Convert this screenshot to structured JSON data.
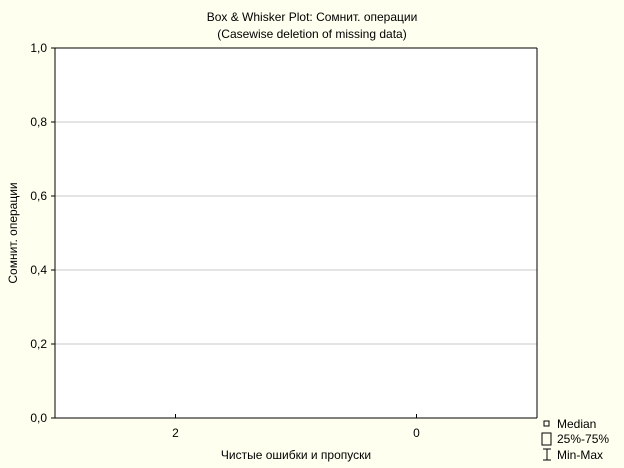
{
  "chart_data": {
    "type": "boxplot",
    "title": "Box & Whisker Plot: Сомнит. операции",
    "subtitle": "(Casewise deletion of missing data)",
    "xlabel": "Чистые ошибки и пропуски",
    "ylabel": "Сомнит. операции",
    "categories": [
      "2",
      "0"
    ],
    "ylim": [
      0,
      1
    ],
    "yticks": [
      "0,0",
      "0,2",
      "0,4",
      "0,6",
      "0,8",
      "1,0"
    ],
    "ytick_values": [
      0,
      0.2,
      0.4,
      0.6,
      0.8,
      1.0
    ],
    "series": [],
    "grid": true,
    "legend_position": "bottom-right",
    "legend": [
      {
        "label": "Median",
        "marker": "small-square"
      },
      {
        "label": "25%-75%",
        "marker": "box"
      },
      {
        "label": "Min-Max",
        "marker": "whisker"
      }
    ],
    "colors": {
      "background": "#fffff0",
      "plot_area": "#ffffff",
      "grid": "#c8c8c8",
      "axis": "#000000"
    }
  }
}
